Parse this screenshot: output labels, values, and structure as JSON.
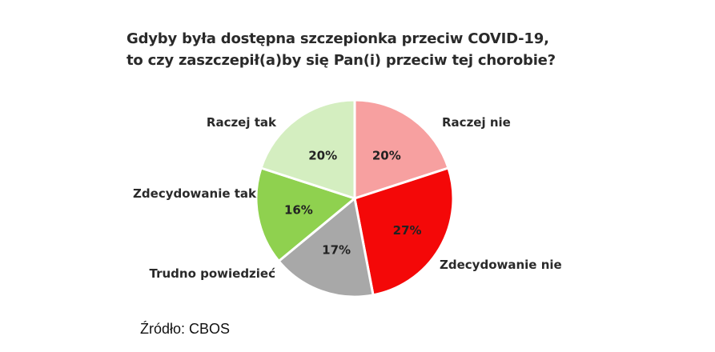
{
  "title_lines": [
    "Gdyby była dostępna szczepionka przeciw COVID-19,",
    "to czy zaszczepił(a)by się Pan(i) przeciw tej chorobie?"
  ],
  "source": "Źródło: CBOS",
  "colors": {
    "stroke": "#ffffff",
    "label_text": "#2a2a2a",
    "pct_text": "#222222"
  },
  "chart_data": {
    "type": "pie",
    "title": "Gdyby była dostępna szczepionka przeciw COVID-19, to czy zaszczepił(a)by się Pan(i) przeciw tej chorobie?",
    "unit": "%",
    "slices": [
      {
        "label": "Raczej nie",
        "value": 20,
        "value_label": "20%",
        "color": "#f7a0a0"
      },
      {
        "label": "Zdecydowanie nie",
        "value": 27,
        "value_label": "27%",
        "color": "#f40808"
      },
      {
        "label": "Trudno powiedzieć",
        "value": 17,
        "value_label": "17%",
        "color": "#a8a8a8"
      },
      {
        "label": "Zdecydowanie tak",
        "value": 16,
        "value_label": "16%",
        "color": "#8fd14f"
      },
      {
        "label": "Raczej tak",
        "value": 20,
        "value_label": "20%",
        "color": "#d4eec0"
      }
    ],
    "start_position": "top, clockwise",
    "legend": "none (labels placed next to slices)"
  }
}
